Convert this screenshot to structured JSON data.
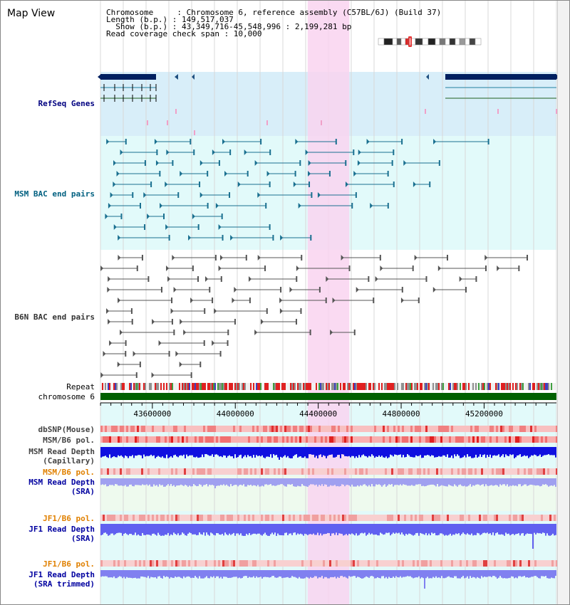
{
  "view": {
    "title": "Map View",
    "info_lines": [
      "Chromosome     : Chromosome 6, reference assembly (C57BL/6J) (Build 37)",
      "Length (b.p.) : 149,517,037",
      "  Show (b.p.) : 43,349,716-45,548,996 : 2,199,281 bp",
      "Read coverage check span : 10,000"
    ],
    "region": {
      "start": 43349716,
      "end": 45548996
    },
    "highlight": {
      "start": 44349000,
      "end": 44550000
    }
  },
  "tracks": {
    "refseq": {
      "label": "RefSeq Genes",
      "color": "#000080"
    },
    "msm_bac": {
      "label": "MSM BAC end pairs",
      "color": "#006080"
    },
    "b6n_bac": {
      "label": "B6N BAC end pairs",
      "color": "#333333"
    },
    "repeat": {
      "label": "Repeat"
    },
    "chromosome": {
      "label": "chromosome 6"
    },
    "axis_ticks": [
      {
        "label": "43600000",
        "pos": 43600000
      },
      {
        "label": "44000000",
        "pos": 44000000
      },
      {
        "label": "44400000",
        "pos": 44400000
      },
      {
        "label": "44800000",
        "pos": 44800000
      },
      {
        "label": "45200000",
        "pos": 45200000
      }
    ],
    "dbsnp": {
      "label": "dbSNP(Mouse)"
    },
    "msm_b6_pol": {
      "label": "MSM/B6 pol."
    },
    "msm_depth_cap": {
      "label": "MSM Read Depth",
      "label2": "(Capillary)"
    },
    "msm_b6_pol_2": {
      "label": "MSM/B6 pol."
    },
    "msm_depth_sra": {
      "label": "MSM Read Depth",
      "label2": "(SRA)"
    },
    "jf1_b6_pol": {
      "label": "JF1/B6 pol."
    },
    "jf1_depth_sra": {
      "label": "JF1 Read Depth",
      "label2": "(SRA)"
    },
    "jf1_b6_pol_2": {
      "label": "JF1/B6 pol."
    },
    "jf1_depth_trim": {
      "label": "JF1 Read Depth",
      "label2": "(SRA trimmed)"
    }
  },
  "colors": {
    "highlight": "#f9d4f0",
    "refseq_bg": "#d8eef9",
    "track_bg": "#e2fafa",
    "msm_sra_bg": "#eefaee",
    "orange_label": "#e08000",
    "blue_label": "#0000a0"
  }
}
